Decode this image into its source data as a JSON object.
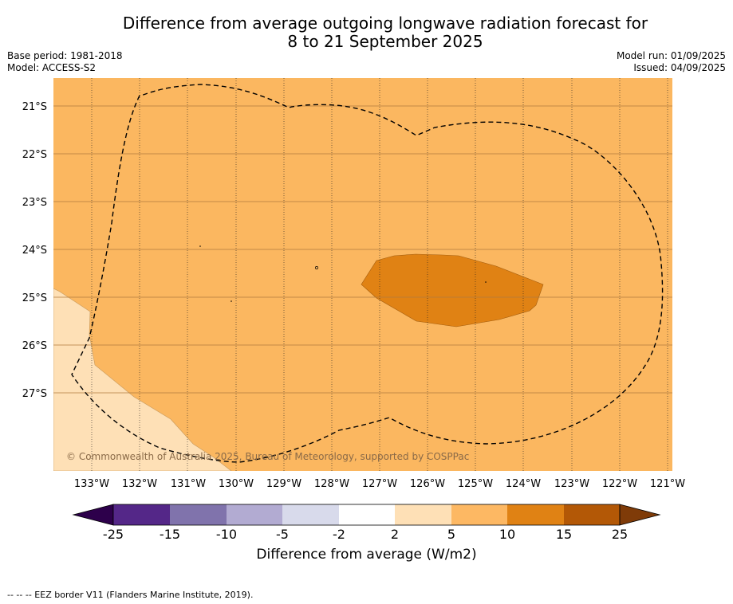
{
  "title": {
    "line1": "Difference from average outgoing longwave radiation forecast for",
    "line2": "8 to 21 September 2025"
  },
  "meta": {
    "base_period": "Base period: 1981-2018",
    "model": "Model: ACCESS-S2",
    "model_run": "Model run: 01/09/2025",
    "issued": "Issued: 04/09/2025"
  },
  "map": {
    "lon_labels": [
      "133°W",
      "132°W",
      "131°W",
      "130°W",
      "129°W",
      "128°W",
      "127°W",
      "126°W",
      "125°W",
      "124°W",
      "123°W",
      "122°W",
      "121°W"
    ],
    "lat_labels": [
      "21°S",
      "22°S",
      "23°S",
      "24°S",
      "25°S",
      "26°S",
      "27°S"
    ],
    "copyright": "© Commonwealth of Australia 2025, Bureau of Meteorology, supported by COSPPac",
    "colors": {
      "background_class_5_10": "#fbb760",
      "class_2_5": "#fee0b6",
      "class_10_15": "#e08214",
      "eez_line": "#000000"
    }
  },
  "colorbar": {
    "ticks": [
      "-25",
      "-15",
      "-10",
      "-5",
      "-2",
      "2",
      "5",
      "10",
      "15",
      "25"
    ],
    "colors": [
      "#2d004b",
      "#542788",
      "#8073ac",
      "#b2abd2",
      "#d8daeb",
      "#ffffff",
      "#fee0b6",
      "#fdb863",
      "#e08214",
      "#b35806",
      "#7f3b08"
    ],
    "label": "Difference from average (W/m2)"
  },
  "source": "--  --  -- EEZ border V11 (Flanders Marine Institute, 2019)."
}
